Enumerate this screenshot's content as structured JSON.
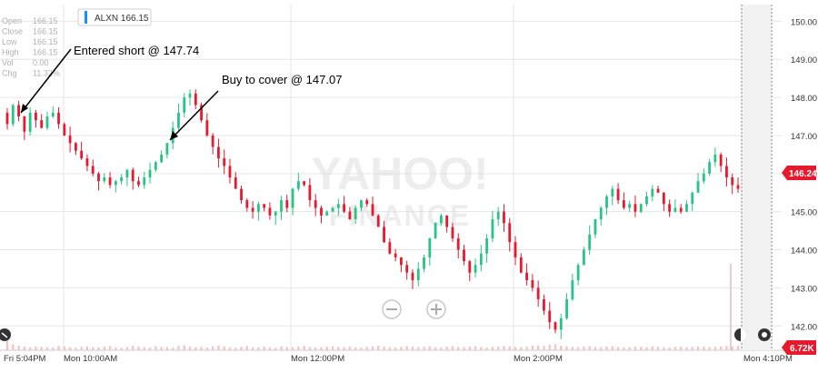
{
  "ticker_badge": {
    "label": "ALXN 166.15",
    "accent": "#188fff"
  },
  "stats": [
    {
      "label": "Open",
      "value": "166.15"
    },
    {
      "label": "Close",
      "value": "166.15"
    },
    {
      "label": "Low",
      "value": "166.15"
    },
    {
      "label": "High",
      "value": "166.15"
    },
    {
      "label": "Vol",
      "value": "0.00"
    },
    {
      "label": "Chg",
      "value": "11.32%"
    }
  ],
  "watermark": {
    "line1": "YAHOO!",
    "line2": "FINANCE"
  },
  "annotations": [
    {
      "text": "Entered short @ 147.74",
      "target_price": 147.74
    },
    {
      "text": "Buy to cover @ 147.07",
      "target_price": 147.07
    }
  ],
  "price_tag": {
    "label": "146.24",
    "color": "#e8182d"
  },
  "volume_tag": {
    "label": "6.72K",
    "color": "#e8182d"
  },
  "colors": {
    "up": "#26c485",
    "down": "#e8182d",
    "grid": "#e6e6e6"
  },
  "chart_data": {
    "type": "candlestick",
    "title": "",
    "ylim": [
      141.6,
      150.2
    ],
    "y_ticks": [
      "150.00",
      "149.00",
      "148.00",
      "147.00",
      "146.00",
      "145.00",
      "144.00",
      "143.00",
      "142.00"
    ],
    "x_ticks": [
      "Fri 5:04PM",
      "Mon 10:00AM",
      "Mon 12:00PM",
      "Mon 2:00PM",
      "Mon 4:10PM"
    ],
    "grid": true,
    "series": [
      {
        "values": [
          147.3,
          147.8,
          147.5,
          147.1,
          147.6,
          147.4,
          147.2,
          147.5,
          147.6,
          147.3,
          147.0,
          146.8,
          146.6,
          146.4,
          146.2,
          146.0,
          145.8,
          145.9,
          145.7,
          145.8,
          145.9,
          146.1,
          145.8,
          145.7,
          145.9,
          146.1,
          146.3,
          146.5,
          146.8,
          147.2,
          147.6,
          148.0,
          148.1,
          147.8,
          147.4,
          147.0,
          146.7,
          146.4,
          146.2,
          145.9,
          145.6,
          145.3,
          145.1,
          145.0,
          145.2,
          145.1,
          144.9,
          145.0,
          145.3,
          145.1,
          145.6,
          145.8,
          145.7,
          145.3,
          145.1,
          144.9,
          145.0,
          145.1,
          145.2,
          145.0,
          144.8,
          145.1,
          145.3,
          145.2,
          144.9,
          144.6,
          144.2,
          143.9,
          143.8,
          143.6,
          143.4,
          143.2,
          143.5,
          143.8,
          144.3,
          144.7,
          144.9,
          144.6,
          144.3,
          144.0,
          143.7,
          143.4,
          143.6,
          143.9,
          144.3,
          144.8,
          145.0,
          144.7,
          144.2,
          143.8,
          143.4,
          143.2,
          143.0,
          142.7,
          142.4,
          142.1,
          141.9,
          142.2,
          142.7,
          143.2,
          143.6,
          144.0,
          144.4,
          144.8,
          145.1,
          145.4,
          145.6,
          145.3,
          145.1,
          145.2,
          145.0,
          145.2,
          145.4,
          145.6,
          145.5,
          145.2,
          145.0,
          145.1,
          145.0,
          145.2,
          145.5,
          145.8,
          146.0,
          146.3,
          146.5,
          146.2,
          145.9,
          145.7,
          145.6
        ]
      }
    ],
    "volume": [
      3,
      2,
      1.5,
      1.2,
      1,
      1.3,
      1.1,
      1,
      0.9,
      1.4,
      1.2,
      1,
      0.8,
      1.1,
      1.3,
      1,
      0.9,
      1.2,
      1.4,
      1,
      0.8,
      1.1,
      1.5,
      1.2,
      1,
      0.9,
      1.3,
      1.1,
      1,
      0.8,
      1.4,
      1.6,
      1.2,
      1,
      1.1,
      0.9,
      1.3,
      1.5,
      1.2,
      1,
      0.8,
      1.1,
      1.4,
      1,
      0.9,
      1.2,
      1,
      0.8,
      1.3,
      1.1,
      1,
      1.2,
      1.4,
      1.1,
      0.9,
      1,
      1.2,
      1.3,
      1.1,
      1,
      1.2,
      1,
      0.9,
      1.1,
      1.3,
      1.5,
      1.2,
      1,
      0.9,
      1.1,
      1.4,
      1.2,
      1,
      1.1,
      1.3,
      1,
      0.9,
      1.2,
      1.4,
      1.1,
      1,
      1.2,
      1.3,
      1,
      0.9,
      1.1,
      1.2,
      1.4,
      1.3,
      1.1,
      1,
      1.2,
      1.5,
      1.6,
      1.4,
      1.8,
      2,
      1.5,
      1.3,
      1.1,
      1,
      1.2,
      1.4,
      1.1,
      1,
      1.2,
      1.3,
      1.1,
      0.9,
      1,
      1.2,
      1.1,
      1,
      1.3,
      1.2,
      1,
      0.9,
      1.1,
      1.2,
      1,
      1.1,
      1.3,
      1.2,
      1,
      1.1,
      1.2,
      1.4,
      1.3,
      1.5
    ]
  }
}
